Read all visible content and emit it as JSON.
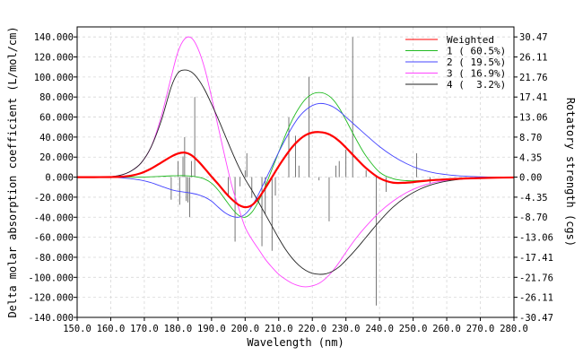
{
  "chart_data": {
    "type": "line",
    "xlabel": "Wavelength (nm)",
    "ylabel": "Delta molar absorption coefficient (L/mol/cm)",
    "ylabel_right": "Rotatory strength (cgs)",
    "xlim": [
      150,
      280
    ],
    "ylim": [
      -140000,
      150000
    ],
    "y2lim": [
      -30.47,
      30.47
    ],
    "grid": true,
    "legend_position": "top-right",
    "x_ticks": [
      150,
      160,
      170,
      180,
      190,
      200,
      210,
      220,
      230,
      240,
      250,
      260,
      270,
      280
    ],
    "x_tick_labels": [
      "150.0",
      "160.0",
      "170.0",
      "180.0",
      "190.0",
      "200.0",
      "210.0",
      "220.0",
      "230.0",
      "240.0",
      "250.0",
      "260.0",
      "270.0",
      "280.0"
    ],
    "y_ticks": [
      140000,
      120000,
      100000,
      80000,
      60000,
      40000,
      20000,
      0,
      -20000,
      -40000,
      -60000,
      -80000,
      -100000,
      -120000,
      -140000
    ],
    "y_tick_labels": [
      "140.000",
      "120.000",
      "100.000",
      "80.000",
      "60.000",
      "40.000",
      "20.000",
      "0.000",
      "-20.000",
      "-40.000",
      "-60.000",
      "-80.000",
      "-100.000",
      "-120.000",
      "-140.000"
    ],
    "y2_ticks": [
      30.47,
      26.11,
      21.76,
      17.41,
      13.06,
      8.7,
      4.35,
      0,
      -4.35,
      -8.7,
      -13.06,
      -17.41,
      -21.76,
      -26.11,
      -30.47
    ],
    "y2_tick_labels": [
      "30.47",
      "26.11",
      "21.76",
      "17.41",
      "13.06",
      "8.70",
      "4.35",
      "0.00",
      "-4.35",
      "-8.70",
      "-13.06",
      "-17.41",
      "-21.76",
      "-26.11",
      "-30.47"
    ],
    "x": [
      150,
      155,
      160,
      163,
      166,
      169,
      172,
      175,
      178,
      180,
      182,
      184,
      186,
      188,
      190,
      192,
      194,
      196,
      198,
      200,
      202,
      204,
      206,
      208,
      210,
      212,
      214,
      216,
      218,
      220,
      222,
      224,
      226,
      228,
      230,
      233,
      236,
      240,
      244,
      248,
      252,
      256,
      260,
      265,
      270,
      275,
      280
    ],
    "series": [
      {
        "name": "Weighted",
        "color": "#ff0000",
        "width": 2.2,
        "values": [
          0,
          0,
          100,
          400,
          1500,
          4000,
          8500,
          14500,
          20500,
          23500,
          24500,
          22000,
          16000,
          8500,
          500,
          -7000,
          -15000,
          -22000,
          -27500,
          -30000,
          -28000,
          -21000,
          -11000,
          0,
          11000,
          21000,
          30000,
          37000,
          42000,
          44500,
          45000,
          44000,
          41000,
          36000,
          29500,
          19000,
          9000,
          -1000,
          -5500,
          -5500,
          -4200,
          -3000,
          -2200,
          -1400,
          -900,
          -500,
          -300
        ]
      },
      {
        "name": "1 ( 60.5%)",
        "color": "#22bb22",
        "width": 0.9,
        "values": [
          0,
          0,
          0,
          0,
          0,
          100,
          400,
          800,
          1300,
          1500,
          1500,
          1000,
          0,
          -2000,
          -6000,
          -13000,
          -22000,
          -31000,
          -38000,
          -40000,
          -35000,
          -24000,
          -9000,
          8000,
          25000,
          42000,
          57000,
          69000,
          78000,
          83000,
          84500,
          83000,
          78000,
          69000,
          57000,
          38000,
          21000,
          5000,
          -1500,
          -3500,
          -3500,
          -2500,
          -1800,
          -1000,
          -600,
          -300,
          -200
        ]
      },
      {
        "name": "2 ( 19.5%)",
        "color": "#4444ff",
        "width": 0.9,
        "values": [
          0,
          0,
          -200,
          -600,
          -1500,
          -3000,
          -5500,
          -9000,
          -12500,
          -14000,
          -15000,
          -16000,
          -17500,
          -20000,
          -24000,
          -30000,
          -35500,
          -39000,
          -40000,
          -37000,
          -29000,
          -17000,
          -3000,
          11000,
          25000,
          38000,
          50000,
          60000,
          67000,
          71500,
          73500,
          73000,
          70500,
          66000,
          60000,
          51000,
          42000,
          30500,
          21000,
          13500,
          8000,
          4500,
          2500,
          1000,
          300,
          -100,
          -200
        ]
      },
      {
        "name": "3 ( 16.9%)",
        "color": "#ff44ff",
        "width": 0.9,
        "values": [
          0,
          0,
          500,
          2000,
          6000,
          14000,
          30000,
          60000,
          100000,
          125000,
          138000,
          139000,
          128000,
          108000,
          80000,
          50000,
          20000,
          -8000,
          -30000,
          -50000,
          -62000,
          -72000,
          -82000,
          -90000,
          -97000,
          -102000,
          -106000,
          -108500,
          -109500,
          -108500,
          -106000,
          -101000,
          -94000,
          -85000,
          -75000,
          -61000,
          -49000,
          -35000,
          -24000,
          -15500,
          -9500,
          -5500,
          -3200,
          -1500,
          -700,
          -300,
          -200
        ]
      },
      {
        "name": "4 (  3.2%)",
        "color": "#222222",
        "width": 0.9,
        "values": [
          0,
          0,
          500,
          2000,
          6000,
          14000,
          30000,
          56000,
          90000,
          104000,
          107000,
          105000,
          98000,
          87000,
          73000,
          58000,
          42000,
          26000,
          11000,
          -2000,
          -13000,
          -25000,
          -37000,
          -49000,
          -61000,
          -72000,
          -81000,
          -88000,
          -93000,
          -96000,
          -97000,
          -96500,
          -94000,
          -89500,
          -83000,
          -72000,
          -60000,
          -44000,
          -30000,
          -19500,
          -12000,
          -7000,
          -4000,
          -1800,
          -800,
          -300,
          -200
        ]
      }
    ],
    "sticks": {
      "x": [
        178,
        180,
        180.5,
        181.5,
        182,
        182.5,
        183,
        183.5,
        184,
        185,
        195,
        197,
        198.5,
        200,
        200.5,
        202,
        205,
        206,
        208,
        209,
        213,
        215,
        216,
        219,
        222,
        225,
        227,
        228,
        230,
        232,
        236,
        239,
        242,
        251,
        255
      ],
      "values": [
        -4.9,
        3.5,
        -6,
        4.5,
        8.7,
        -5.2,
        -5.5,
        -8.7,
        3.5,
        17.4,
        -4.35,
        -14,
        -2,
        1.5,
        5.2,
        -4.5,
        -15,
        -8,
        -16,
        -4,
        13,
        9,
        2.5,
        21.8,
        -0.7,
        -9.6,
        2.5,
        3.5,
        6,
        30.4,
        1.5,
        -27.9,
        -3.2,
        5.2,
        -1.5
      ]
    }
  }
}
